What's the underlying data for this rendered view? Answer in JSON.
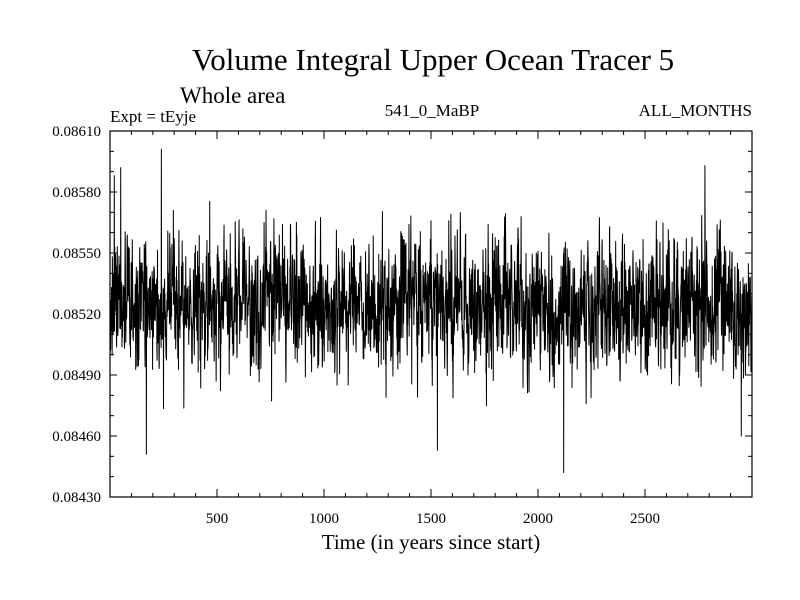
{
  "chart_data": {
    "type": "line",
    "title": "Volume Integral Upper Ocean Tracer 5",
    "subtitle": "Whole area",
    "experiment": "Expt = tEyje",
    "period": "541_0_MaBP",
    "season": "ALL_MONTHS",
    "xlabel": "Time (in years since start)",
    "ylabel": "",
    "xlim": [
      0,
      3000
    ],
    "ylim": [
      0.0843,
      0.0861
    ],
    "x_ticks": [
      500,
      1000,
      1500,
      2000,
      2500
    ],
    "x_tick_labels": [
      "500",
      "1000",
      "1500",
      "2000",
      "2500"
    ],
    "y_ticks": [
      0.0843,
      0.0846,
      0.0849,
      0.0852,
      0.0855,
      0.0858,
      0.0861
    ],
    "y_tick_labels": [
      "0.08430",
      "0.08460",
      "0.08490",
      "0.08520",
      "0.08550",
      "0.08580",
      "0.08610"
    ],
    "series": [
      {
        "name": "tEyje",
        "color": "#000000",
        "x_start": 1,
        "x_step": 1,
        "n_points": 3000,
        "mean": 0.08524,
        "std": 0.00016,
        "min": 0.08442,
        "max": 0.08601,
        "notable_points": [
          {
            "x": 20,
            "y": 0.08588
          },
          {
            "x": 50,
            "y": 0.08592
          },
          {
            "x": 170,
            "y": 0.08451
          },
          {
            "x": 240,
            "y": 0.08601
          },
          {
            "x": 1290,
            "y": 0.08479
          },
          {
            "x": 1530,
            "y": 0.08453
          },
          {
            "x": 2120,
            "y": 0.08442
          },
          {
            "x": 2780,
            "y": 0.08593
          },
          {
            "x": 2950,
            "y": 0.0846
          }
        ]
      }
    ],
    "grid": false,
    "legend": "none"
  }
}
